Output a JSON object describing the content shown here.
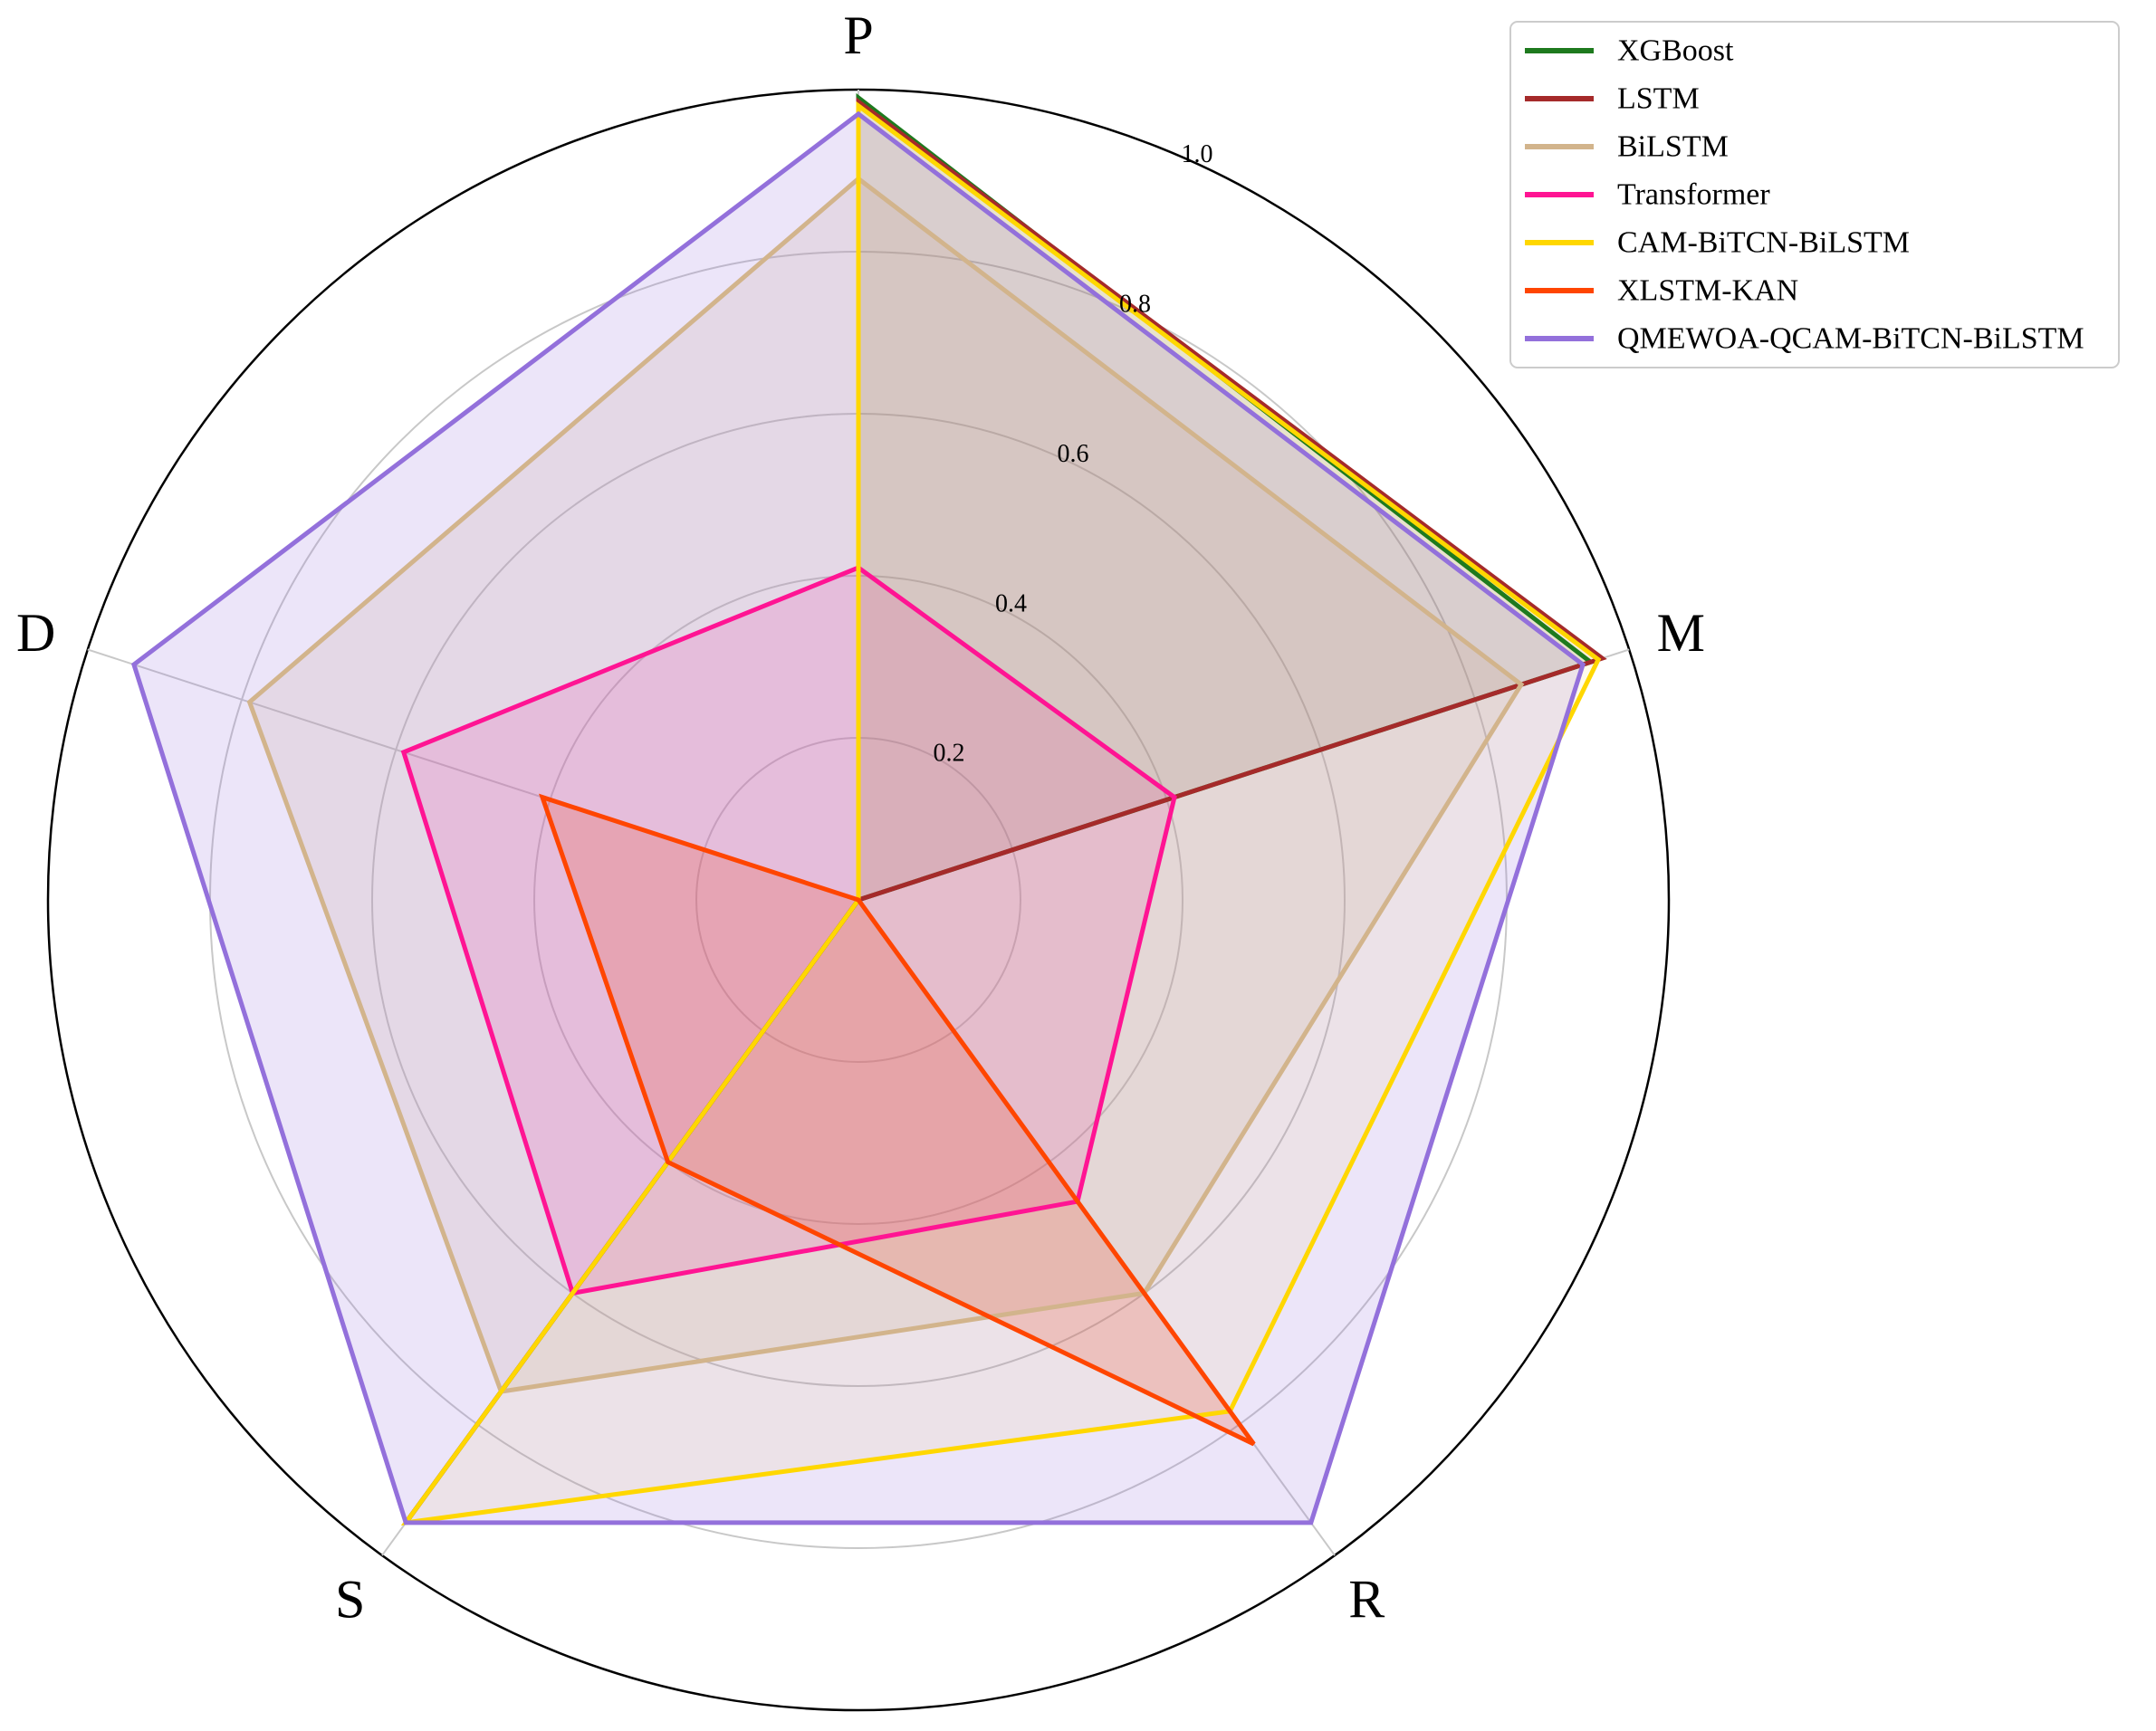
{
  "chart_data": {
    "type": "radar",
    "axes": [
      "P",
      "M",
      "R",
      "S",
      "D"
    ],
    "rlim": [
      0,
      1.0
    ],
    "rticks": [
      "0.2",
      "0.4",
      "0.6",
      "0.8",
      "1.0"
    ],
    "rtick_values": [
      0.2,
      0.4,
      0.6,
      0.8,
      1.0
    ],
    "grid": true,
    "legend_position": "top-right",
    "series": [
      {
        "name": "XGBoost",
        "color": "#1e7a1e",
        "values": [
          0.99,
          0.95,
          0.0,
          0.95,
          0.0
        ],
        "fill_opacity": 0.08
      },
      {
        "name": "LSTM",
        "color": "#a52a2a",
        "values": [
          0.985,
          0.965,
          0.0,
          0.95,
          0.0
        ],
        "fill_opacity": 0.08
      },
      {
        "name": "BiLSTM",
        "color": "#d2b48c",
        "values": [
          0.89,
          0.86,
          0.6,
          0.75,
          0.79
        ],
        "fill_opacity": 0.2
      },
      {
        "name": "Transformer",
        "color": "#ff1493",
        "values": [
          0.41,
          0.41,
          0.46,
          0.6,
          0.59
        ],
        "fill_opacity": 0.15
      },
      {
        "name": "CAM-BiTCN-BiLSTM",
        "color": "#ffd700",
        "values": [
          0.98,
          0.96,
          0.78,
          0.95,
          0.0
        ],
        "fill_opacity": 0.08
      },
      {
        "name": "XLSTM-KAN",
        "color": "#ff4500",
        "values": [
          0.0,
          0.0,
          0.83,
          0.4,
          0.41
        ],
        "fill_opacity": 0.22
      },
      {
        "name": "QMEWOA-QCAM-BiTCN-BiLSTM",
        "color": "#9370db",
        "values": [
          0.97,
          0.94,
          0.95,
          0.95,
          0.94
        ],
        "fill_opacity": 0.18
      }
    ]
  }
}
